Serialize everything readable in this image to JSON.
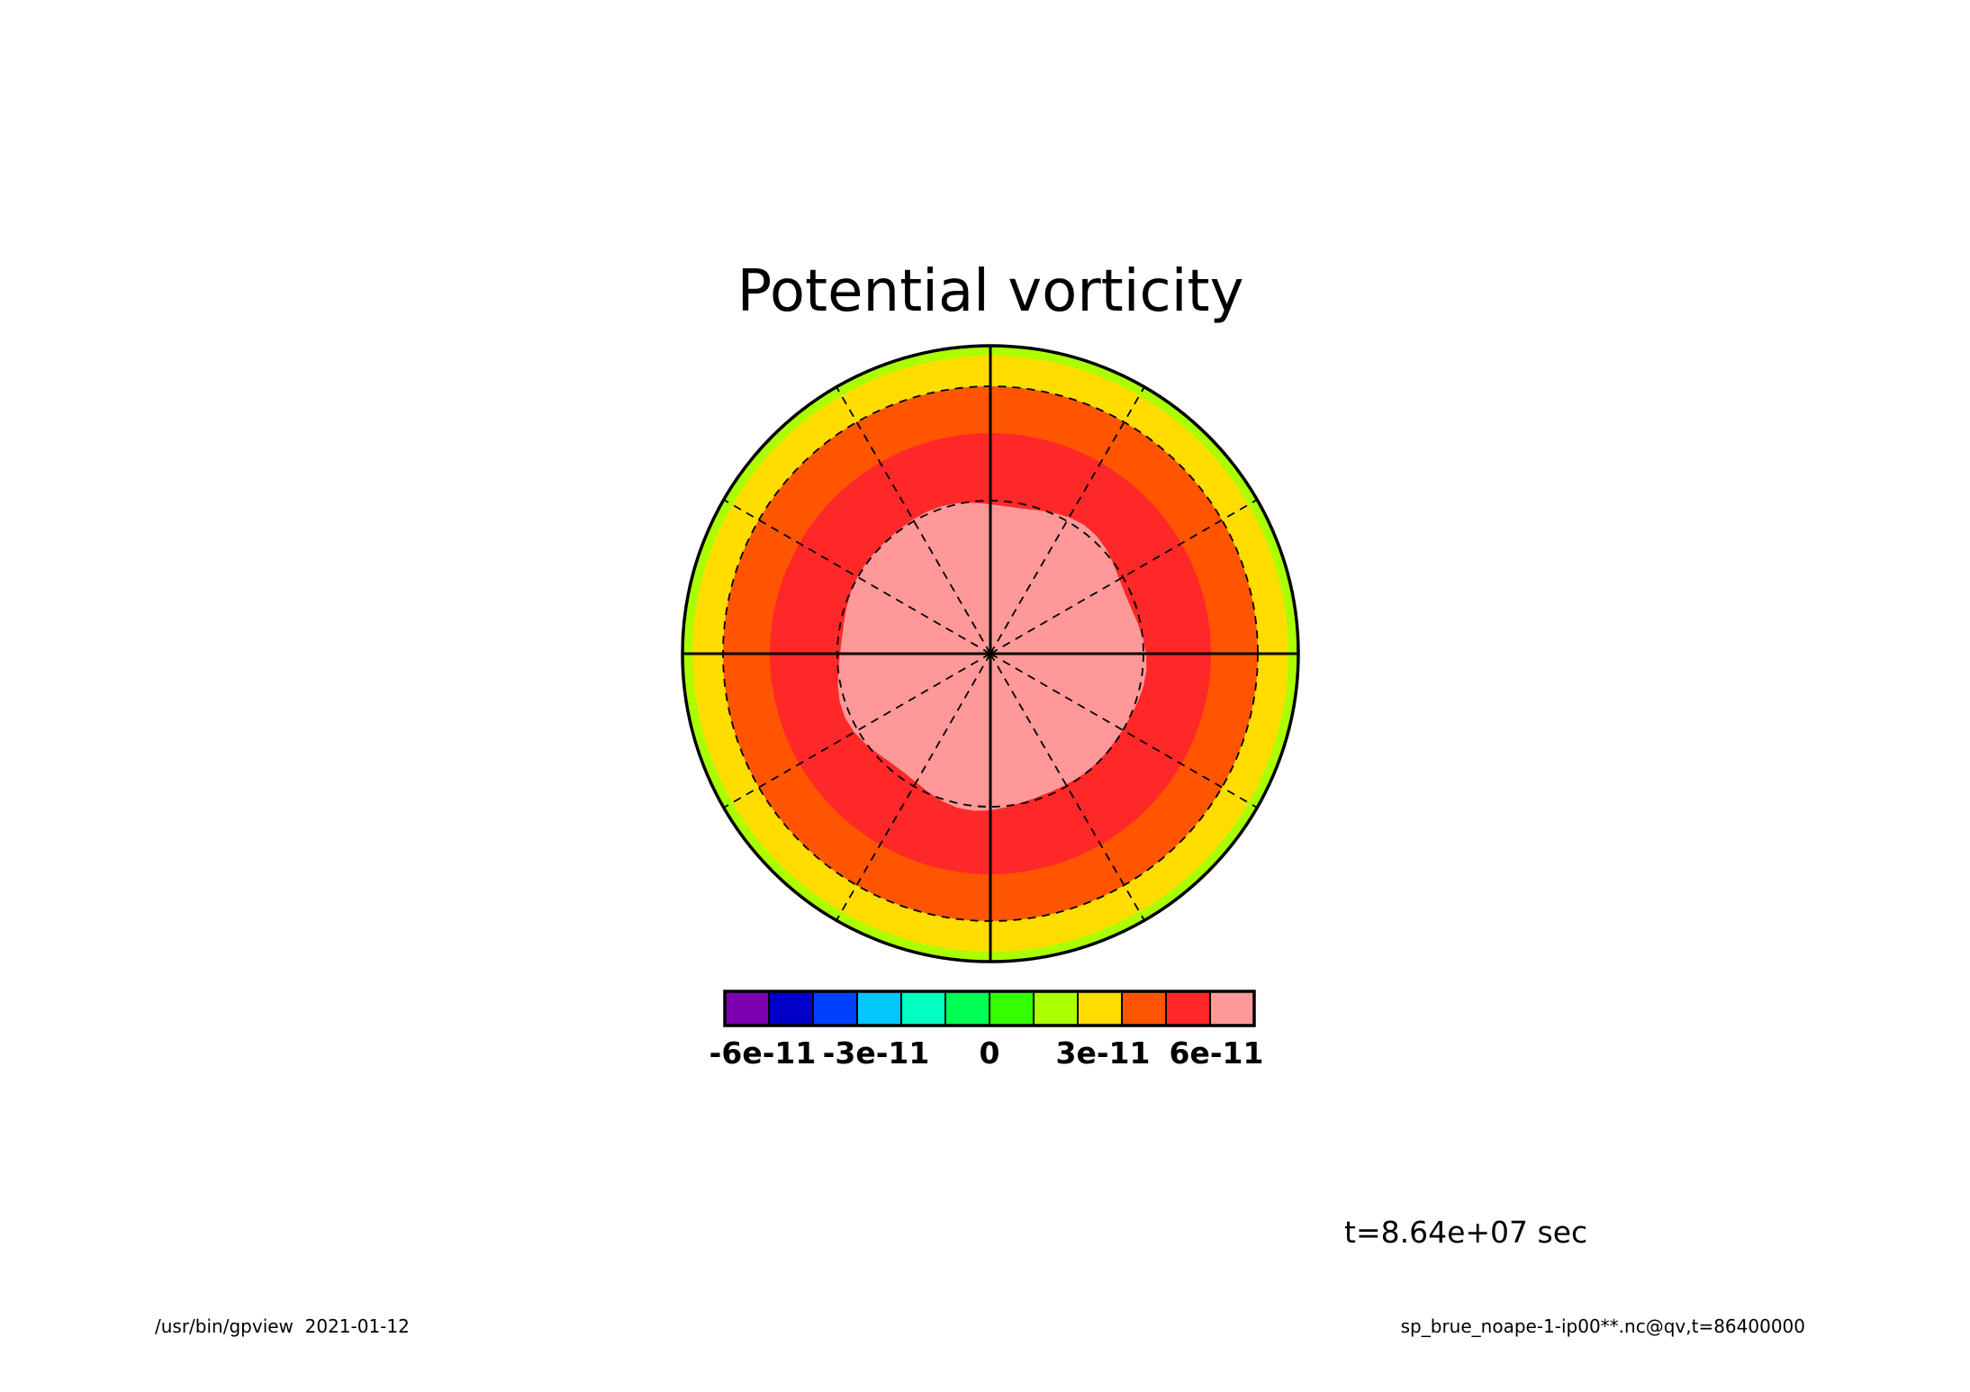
{
  "chart_data": {
    "type": "heatmap",
    "projection": "polar stereographic",
    "title": "Potential vorticity",
    "time_label": "t=8.64e+07 sec",
    "colorbar": {
      "colors": [
        "#7a00b0",
        "#0000c8",
        "#0040ff",
        "#00c8ff",
        "#00ffc0",
        "#00ff55",
        "#33ff00",
        "#aaff00",
        "#ffdd00",
        "#ff5500",
        "#ff2828",
        "#ff9999"
      ],
      "tick_labels": [
        "-6e-11",
        "-3e-11",
        "0",
        "3e-11",
        "6e-11"
      ],
      "tick_values": [
        -6e-11,
        -3e-11,
        0,
        3e-11,
        6e-11
      ],
      "range": [
        -7e-11,
        7e-11
      ],
      "interval": 1e-11
    },
    "field_bands_from_pole": [
      {
        "lower": 6e-11,
        "upper": 7e-11,
        "color": "#ff9999"
      },
      {
        "lower": 5e-11,
        "upper": 6e-11,
        "color": "#ff2828"
      },
      {
        "lower": 4e-11,
        "upper": 5e-11,
        "color": "#ff5500"
      },
      {
        "lower": 3e-11,
        "upper": 4e-11,
        "color": "#ffdd00"
      },
      {
        "lower": 2e-11,
        "upper": 3e-11,
        "color": "#aaff00"
      }
    ],
    "grid": "on"
  },
  "footer": {
    "left": "/usr/bin/gpview  2021-01-12",
    "right": "sp_brue_noape-1-ip00**.nc@qv,t=86400000"
  }
}
